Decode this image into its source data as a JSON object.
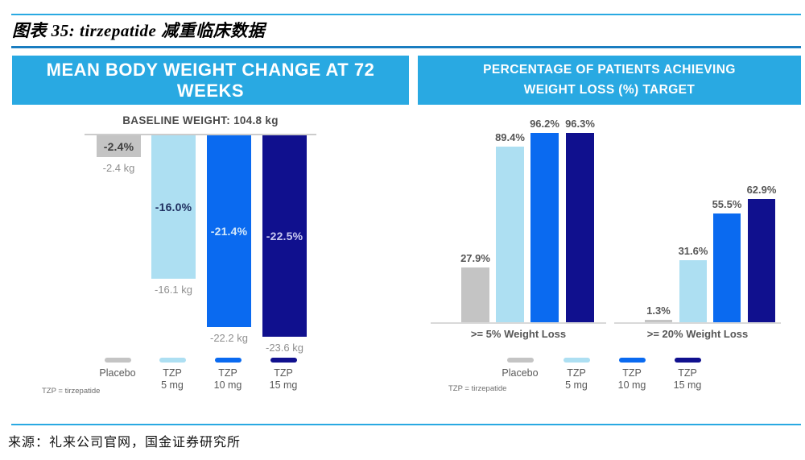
{
  "page": {
    "title": "图表 35: tirzepatide 减重临床数据",
    "source": "来源：礼来公司官网，国金证券研究所"
  },
  "colors": {
    "header_bg": "#29a9e2",
    "accent_line": "#29a9e2",
    "title_rule": "#1a7dc0",
    "axis_line": "#cccccc",
    "bars": [
      "#c4c4c4",
      "#addff2",
      "#0a6af0",
      "#10108e"
    ],
    "bar_label_colors": [
      "#3f3f3f",
      "#1f2f60",
      "#d3e8fb",
      "#c9c9f0"
    ],
    "value_label_color": "#565656",
    "kg_label_color": "#8f8f8f"
  },
  "legend": {
    "items": [
      {
        "label": "Placebo",
        "lines": [
          "Placebo"
        ]
      },
      {
        "label": "TZP 5 mg",
        "lines": [
          "TZP",
          "5 mg"
        ]
      },
      {
        "label": "TZP 10 mg",
        "lines": [
          "TZP",
          "10 mg"
        ]
      },
      {
        "label": "TZP 15 mg",
        "lines": [
          "TZP",
          "15 mg"
        ]
      }
    ]
  },
  "chart_data": [
    {
      "type": "bar",
      "title": "MEAN BODY WEIGHT CHANGE AT 72 WEEKS",
      "subtitle": "BASELINE WEIGHT: 104.8 kg",
      "categories": [
        "Placebo",
        "TZP 5 mg",
        "TZP 10 mg",
        "TZP 15 mg"
      ],
      "values": [
        -2.4,
        -16.0,
        -21.4,
        -22.5
      ],
      "value_labels": [
        "-2.4%",
        "-16.0%",
        "-21.4%",
        "-22.5%"
      ],
      "kg_labels": [
        "-2.4 kg",
        "-16.1 kg",
        "-22.2 kg",
        "-23.6 kg"
      ],
      "ylim": [
        -25,
        0
      ],
      "legend_position": "bottom",
      "grid": false,
      "footnote": "TZP = tirzepatide"
    },
    {
      "type": "bar",
      "title": "PERCENTAGE OF PATIENTS ACHIEVING WEIGHT LOSS (%) TARGET",
      "title_lines": [
        "PERCENTAGE OF PATIENTS ACHIEVING",
        "WEIGHT LOSS (%) TARGET"
      ],
      "categories": [
        ">= 5% Weight Loss",
        ">= 20% Weight Loss"
      ],
      "series": [
        {
          "name": "Placebo",
          "values": [
            27.9,
            1.3
          ]
        },
        {
          "name": "TZP 5 mg",
          "values": [
            89.4,
            31.6
          ]
        },
        {
          "name": "TZP 10 mg",
          "values": [
            96.2,
            55.5
          ]
        },
        {
          "name": "TZP 15 mg",
          "values": [
            96.3,
            62.9
          ]
        }
      ],
      "value_labels": [
        [
          "27.9%",
          "89.4%",
          "96.2%",
          "96.3%"
        ],
        [
          "1.3%",
          "31.6%",
          "55.5%",
          "62.9%"
        ]
      ],
      "ylim": [
        0,
        100
      ],
      "legend_position": "bottom",
      "grid": false,
      "footnote": "TZP = tirzepatide"
    }
  ]
}
